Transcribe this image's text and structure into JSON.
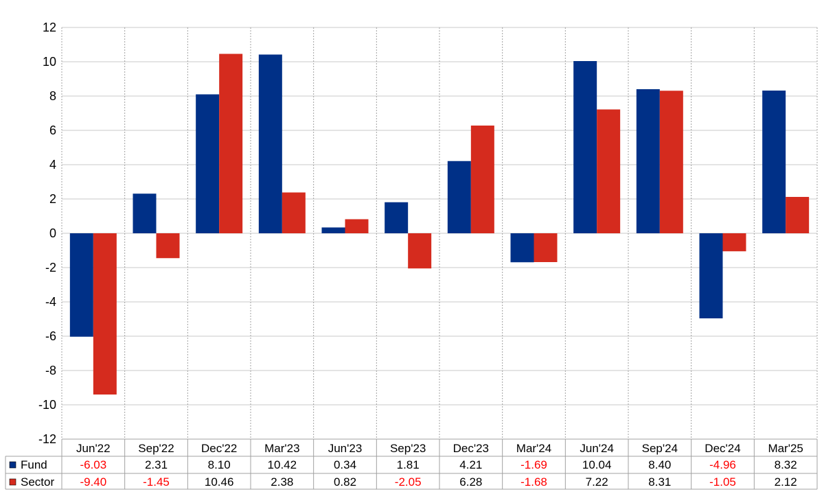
{
  "chart_data": {
    "type": "bar",
    "title": "",
    "xlabel": "",
    "ylabel": "",
    "categories": [
      "Jun'22",
      "Sep'22",
      "Dec'22",
      "Mar'23",
      "Jun'23",
      "Sep'23",
      "Dec'23",
      "Mar'24",
      "Jun'24",
      "Sep'24",
      "Dec'24",
      "Mar'25"
    ],
    "ylim": [
      -12,
      12
    ],
    "yticks": [
      "12",
      "10",
      "8",
      "6",
      "4",
      "2",
      "0",
      "-2",
      "-4",
      "-6",
      "-8",
      "-10",
      "-12"
    ],
    "grid": true,
    "legend": "table-below",
    "series": [
      {
        "name": "Fund",
        "color": "#003087",
        "values": [
          -6.03,
          2.31,
          8.1,
          10.42,
          0.34,
          1.81,
          4.21,
          -1.69,
          10.04,
          8.4,
          -4.96,
          8.32
        ],
        "labels": [
          "-6.03",
          "2.31",
          "8.10",
          "10.42",
          "0.34",
          "1.81",
          "4.21",
          "-1.69",
          "10.04",
          "8.40",
          "-4.96",
          "8.32"
        ]
      },
      {
        "name": "Sector",
        "color": "#d52b1e",
        "values": [
          -9.4,
          -1.45,
          10.46,
          2.38,
          0.82,
          -2.05,
          6.28,
          -1.68,
          7.22,
          8.31,
          -1.05,
          2.12
        ],
        "labels": [
          "-9.40",
          "-1.45",
          "10.46",
          "2.38",
          "0.82",
          "-2.05",
          "6.28",
          "-1.68",
          "7.22",
          "8.31",
          "-1.05",
          "2.12"
        ]
      }
    ],
    "negative_label_color": "#ff0000",
    "positive_label_color": "#000000",
    "grid_color": "#c8c8c8",
    "category_grid_color": "#a0a0a0"
  }
}
